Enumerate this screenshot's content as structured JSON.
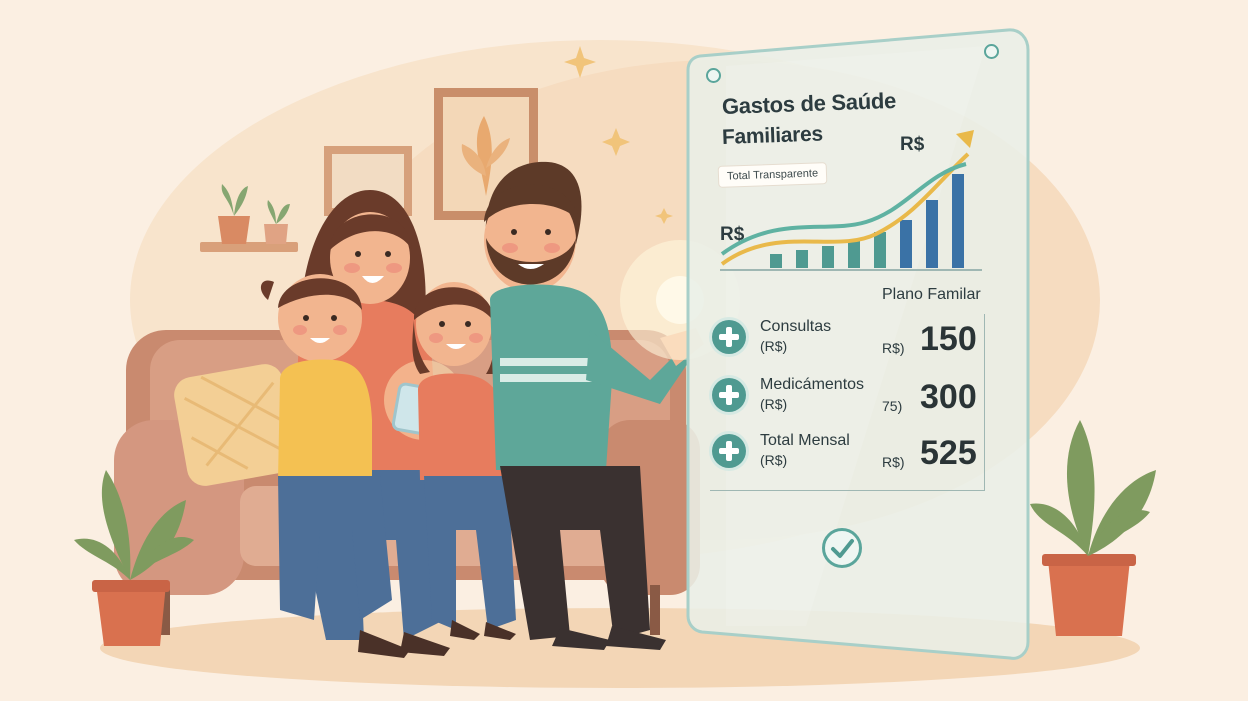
{
  "panel": {
    "title_line1": "Gastos de Saúde",
    "title_line2": "Familiares",
    "badge": "Total Transparente",
    "currency_top": "R$",
    "currency_left": "R$",
    "plan_title": "Plano Familar",
    "rows": [
      {
        "label": "Consultas",
        "sub": "(R$)",
        "mid": "R$)",
        "value": "150"
      },
      {
        "label": "Medicámentos",
        "sub": "(R$)",
        "mid": "75)",
        "value": "300"
      },
      {
        "label": "Total Mensal",
        "sub": "(R$)",
        "mid": "R$)",
        "value": "525"
      }
    ]
  },
  "colors": {
    "background": "#fbefe2",
    "accent_teal": "#4f9a91",
    "accent_gold": "#e9b94a",
    "accent_blue": "#3a72a6"
  },
  "icons": [
    "plus-circle-icon",
    "check-circle-icon",
    "sparkle-icon"
  ]
}
